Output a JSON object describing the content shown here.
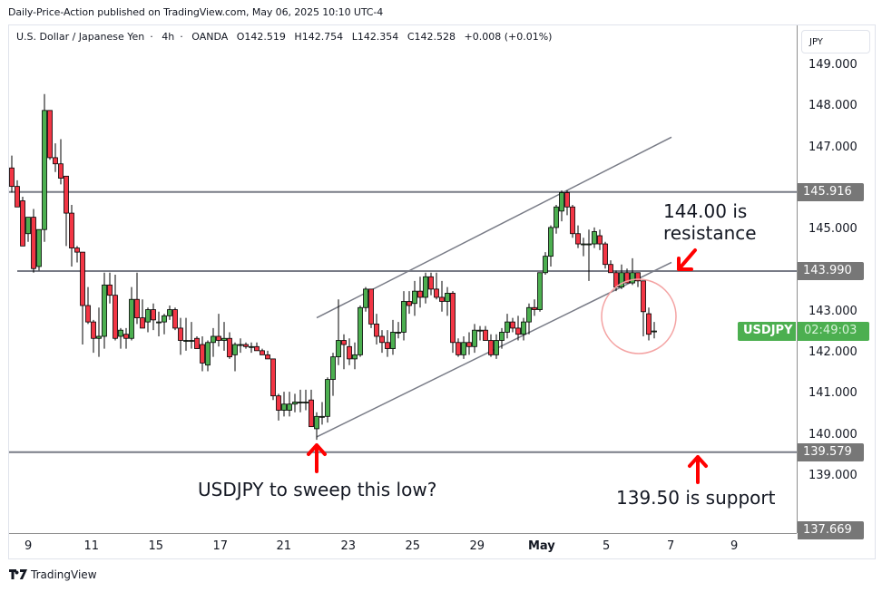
{
  "header": {
    "publisher_line": "Daily-Price-Action published on TradingView.com, May 06, 2025 10:10 UTC-4"
  },
  "legend": {
    "symbol_name": "U.S. Dollar / Japanese Yen",
    "interval": "4h",
    "exchange": "OANDA",
    "open": "O142.519",
    "high": "H142.754",
    "low": "L142.354",
    "close": "C142.528",
    "change": "+0.008 (+0.01%)"
  },
  "price_axis": {
    "currency": "JPY",
    "ticks": [
      "149.000",
      "148.000",
      "147.000",
      "145.000",
      "143.000",
      "142.000",
      "141.000",
      "140.000",
      "139.000"
    ],
    "tags": [
      {
        "label": "145.916",
        "value": 145.916
      },
      {
        "label": "143.990",
        "value": 143.99
      },
      {
        "label": "139.579",
        "value": 139.579
      },
      {
        "label": "137.669",
        "value": 137.669
      }
    ],
    "symbol_tag": "USDJPY",
    "countdown": "02:49:03"
  },
  "time_axis": {
    "ticks": [
      {
        "label": "9",
        "x": 31,
        "bold": false
      },
      {
        "label": "11",
        "x": 101,
        "bold": false
      },
      {
        "label": "15",
        "x": 172,
        "bold": false
      },
      {
        "label": "17",
        "x": 243,
        "bold": false
      },
      {
        "label": "21",
        "x": 313,
        "bold": false
      },
      {
        "label": "23",
        "x": 384,
        "bold": false
      },
      {
        "label": "25",
        "x": 455,
        "bold": false
      },
      {
        "label": "29",
        "x": 526,
        "bold": false
      },
      {
        "label": "May",
        "x": 597,
        "bold": true
      },
      {
        "label": "5",
        "x": 668,
        "bold": false
      },
      {
        "label": "7",
        "x": 739,
        "bold": false
      },
      {
        "label": "9",
        "x": 809,
        "bold": false
      }
    ]
  },
  "annotations": {
    "resistance_note_line1": "144.00 is",
    "resistance_note_line2": "resistance",
    "sweep_note": "USDJPY to sweep this low?",
    "support_note": "139.50 is support"
  },
  "footer": {
    "brand": "TradingView"
  },
  "colors": {
    "up": "#4caf50",
    "down": "#f23645",
    "level_line": "#787b86",
    "arrow": "#ff0000",
    "circle": "#f4a3a3"
  },
  "chart_data": {
    "type": "candlestick",
    "title": "U.S. Dollar / Japanese Yen · 4h · OANDA",
    "xlabel": "",
    "ylabel": "JPY",
    "ylim": [
      137.2,
      149.7
    ],
    "x_ticks": [
      "9",
      "11",
      "15",
      "17",
      "21",
      "23",
      "25",
      "29",
      "May",
      "5",
      "7",
      "9"
    ],
    "horizontal_levels": [
      145.916,
      143.99,
      139.579
    ],
    "last_price": 142.528,
    "channel": {
      "upper": [
        {
          "x": 349,
          "p": 142.85
        },
        {
          "x": 740,
          "p": 147.25
        }
      ],
      "lower": [
        {
          "x": 349,
          "p": 139.95
        },
        {
          "x": 740,
          "p": 144.2
        }
      ]
    },
    "ohlc": [
      {
        "x": 13,
        "o": 146.5,
        "h": 146.8,
        "l": 145.9,
        "c": 146.05
      },
      {
        "x": 19,
        "o": 146.05,
        "h": 146.2,
        "l": 145.6,
        "c": 145.55
      },
      {
        "x": 25,
        "o": 145.7,
        "h": 145.8,
        "l": 144.95,
        "c": 144.6
      },
      {
        "x": 31,
        "o": 144.9,
        "h": 145.3,
        "l": 144.7,
        "c": 145.3
      },
      {
        "x": 37,
        "o": 145.3,
        "h": 145.5,
        "l": 143.95,
        "c": 144.05
      },
      {
        "x": 43,
        "o": 144.1,
        "h": 145.0,
        "l": 144.0,
        "c": 145.0
      },
      {
        "x": 49,
        "o": 145.0,
        "h": 148.3,
        "l": 144.7,
        "c": 147.9
      },
      {
        "x": 55,
        "o": 147.9,
        "h": 147.9,
        "l": 146.7,
        "c": 146.75
      },
      {
        "x": 61,
        "o": 146.75,
        "h": 147.1,
        "l": 146.4,
        "c": 146.6
      },
      {
        "x": 67,
        "o": 146.6,
        "h": 147.2,
        "l": 146.1,
        "c": 146.25
      },
      {
        "x": 73,
        "o": 146.3,
        "h": 146.3,
        "l": 144.6,
        "c": 145.4
      },
      {
        "x": 79,
        "o": 145.4,
        "h": 145.6,
        "l": 144.1,
        "c": 144.55
      },
      {
        "x": 85,
        "o": 144.55,
        "h": 144.6,
        "l": 144.2,
        "c": 144.45
      },
      {
        "x": 91,
        "o": 144.45,
        "h": 144.45,
        "l": 142.2,
        "c": 143.15
      },
      {
        "x": 97,
        "o": 143.15,
        "h": 143.6,
        "l": 142.7,
        "c": 142.75
      },
      {
        "x": 103,
        "o": 142.75,
        "h": 142.8,
        "l": 142.0,
        "c": 142.35
      },
      {
        "x": 109,
        "o": 142.35,
        "h": 143.1,
        "l": 141.9,
        "c": 142.4
      },
      {
        "x": 115,
        "o": 142.4,
        "h": 143.95,
        "l": 142.1,
        "c": 143.65
      },
      {
        "x": 121,
        "o": 143.65,
        "h": 143.95,
        "l": 143.2,
        "c": 143.4
      },
      {
        "x": 127,
        "o": 143.4,
        "h": 143.9,
        "l": 142.3,
        "c": 142.35
      },
      {
        "x": 133,
        "o": 142.4,
        "h": 142.6,
        "l": 142.1,
        "c": 142.55
      },
      {
        "x": 139,
        "o": 142.45,
        "h": 142.6,
        "l": 142.1,
        "c": 142.35
      },
      {
        "x": 145,
        "o": 142.35,
        "h": 143.6,
        "l": 142.3,
        "c": 143.3
      },
      {
        "x": 151,
        "o": 143.3,
        "h": 143.95,
        "l": 142.7,
        "c": 142.85
      },
      {
        "x": 157,
        "o": 142.85,
        "h": 143.3,
        "l": 142.7,
        "c": 142.6
      },
      {
        "x": 163,
        "o": 142.75,
        "h": 143.1,
        "l": 142.5,
        "c": 143.05
      },
      {
        "x": 169,
        "o": 143.05,
        "h": 143.2,
        "l": 142.55,
        "c": 142.8
      },
      {
        "x": 175,
        "o": 142.75,
        "h": 143.0,
        "l": 142.4,
        "c": 142.75
      },
      {
        "x": 181,
        "o": 142.75,
        "h": 142.95,
        "l": 142.45,
        "c": 142.9
      },
      {
        "x": 187,
        "o": 142.9,
        "h": 143.15,
        "l": 142.8,
        "c": 143.05
      },
      {
        "x": 193,
        "o": 143.05,
        "h": 143.1,
        "l": 142.55,
        "c": 142.6
      },
      {
        "x": 199,
        "o": 142.6,
        "h": 142.85,
        "l": 141.95,
        "c": 142.3
      },
      {
        "x": 205,
        "o": 142.3,
        "h": 142.85,
        "l": 142.05,
        "c": 142.3
      },
      {
        "x": 211,
        "o": 142.3,
        "h": 142.75,
        "l": 142.1,
        "c": 142.3
      },
      {
        "x": 217,
        "o": 142.35,
        "h": 142.4,
        "l": 142.1,
        "c": 142.1
      },
      {
        "x": 223,
        "o": 142.2,
        "h": 142.4,
        "l": 141.55,
        "c": 141.75
      },
      {
        "x": 229,
        "o": 141.7,
        "h": 142.3,
        "l": 141.55,
        "c": 142.25
      },
      {
        "x": 235,
        "o": 142.25,
        "h": 142.6,
        "l": 141.9,
        "c": 142.4
      },
      {
        "x": 241,
        "o": 142.4,
        "h": 142.95,
        "l": 142.15,
        "c": 142.3
      },
      {
        "x": 247,
        "o": 142.3,
        "h": 142.75,
        "l": 142.05,
        "c": 142.35
      },
      {
        "x": 253,
        "o": 142.35,
        "h": 142.5,
        "l": 141.85,
        "c": 141.9
      },
      {
        "x": 259,
        "o": 141.95,
        "h": 142.25,
        "l": 141.55,
        "c": 142.2
      },
      {
        "x": 265,
        "o": 142.2,
        "h": 142.35,
        "l": 142.0,
        "c": 142.2
      },
      {
        "x": 271,
        "o": 142.2,
        "h": 142.25,
        "l": 142.1,
        "c": 142.15
      },
      {
        "x": 277,
        "o": 142.15,
        "h": 142.25,
        "l": 142.0,
        "c": 142.15
      },
      {
        "x": 283,
        "o": 142.15,
        "h": 142.25,
        "l": 142.05,
        "c": 142.05
      },
      {
        "x": 289,
        "o": 142.05,
        "h": 142.1,
        "l": 141.95,
        "c": 141.95
      },
      {
        "x": 295,
        "o": 141.95,
        "h": 142.05,
        "l": 141.85,
        "c": 141.85
      },
      {
        "x": 301,
        "o": 141.85,
        "h": 141.85,
        "l": 140.85,
        "c": 140.95
      },
      {
        "x": 307,
        "o": 140.95,
        "h": 141.0,
        "l": 140.35,
        "c": 140.6
      },
      {
        "x": 313,
        "o": 140.6,
        "h": 141.05,
        "l": 140.45,
        "c": 140.75
      },
      {
        "x": 319,
        "o": 140.6,
        "h": 141.05,
        "l": 140.45,
        "c": 140.75
      },
      {
        "x": 325,
        "o": 140.75,
        "h": 141.0,
        "l": 140.55,
        "c": 140.8
      },
      {
        "x": 331,
        "o": 140.8,
        "h": 141.1,
        "l": 140.55,
        "c": 140.8
      },
      {
        "x": 337,
        "o": 140.8,
        "h": 141.1,
        "l": 140.6,
        "c": 140.8
      },
      {
        "x": 343,
        "o": 140.85,
        "h": 141.1,
        "l": 140.2,
        "c": 140.2
      },
      {
        "x": 349,
        "o": 140.15,
        "h": 140.55,
        "l": 139.88,
        "c": 140.45
      },
      {
        "x": 355,
        "o": 140.45,
        "h": 140.8,
        "l": 140.25,
        "c": 140.45
      },
      {
        "x": 361,
        "o": 140.45,
        "h": 141.4,
        "l": 140.3,
        "c": 141.35
      },
      {
        "x": 367,
        "o": 141.35,
        "h": 142.0,
        "l": 140.95,
        "c": 141.9
      },
      {
        "x": 373,
        "o": 141.9,
        "h": 143.3,
        "l": 141.7,
        "c": 142.3
      },
      {
        "x": 379,
        "o": 142.3,
        "h": 142.45,
        "l": 141.6,
        "c": 142.2
      },
      {
        "x": 385,
        "o": 142.15,
        "h": 142.35,
        "l": 141.7,
        "c": 141.85
      },
      {
        "x": 391,
        "o": 141.85,
        "h": 142.25,
        "l": 141.6,
        "c": 141.95
      },
      {
        "x": 397,
        "o": 141.95,
        "h": 143.15,
        "l": 141.9,
        "c": 143.1
      },
      {
        "x": 403,
        "o": 143.1,
        "h": 143.6,
        "l": 143.0,
        "c": 143.55
      },
      {
        "x": 409,
        "o": 143.55,
        "h": 143.55,
        "l": 142.6,
        "c": 142.7
      },
      {
        "x": 415,
        "o": 142.7,
        "h": 142.95,
        "l": 142.2,
        "c": 142.4
      },
      {
        "x": 421,
        "o": 142.4,
        "h": 142.55,
        "l": 142.0,
        "c": 142.25
      },
      {
        "x": 427,
        "o": 142.25,
        "h": 142.55,
        "l": 141.9,
        "c": 142.1
      },
      {
        "x": 433,
        "o": 142.1,
        "h": 142.8,
        "l": 141.95,
        "c": 142.5
      },
      {
        "x": 439,
        "o": 142.5,
        "h": 142.75,
        "l": 142.35,
        "c": 142.5
      },
      {
        "x": 445,
        "o": 142.5,
        "h": 143.5,
        "l": 142.3,
        "c": 143.25
      },
      {
        "x": 451,
        "o": 143.25,
        "h": 143.5,
        "l": 142.95,
        "c": 143.15
      },
      {
        "x": 457,
        "o": 143.2,
        "h": 143.75,
        "l": 142.9,
        "c": 143.5
      },
      {
        "x": 463,
        "o": 143.5,
        "h": 143.85,
        "l": 143.1,
        "c": 143.35
      },
      {
        "x": 469,
        "o": 143.35,
        "h": 143.95,
        "l": 143.2,
        "c": 143.85
      },
      {
        "x": 475,
        "o": 143.85,
        "h": 143.95,
        "l": 143.4,
        "c": 143.55
      },
      {
        "x": 481,
        "o": 143.55,
        "h": 143.95,
        "l": 143.3,
        "c": 143.35
      },
      {
        "x": 487,
        "o": 143.35,
        "h": 143.75,
        "l": 143.0,
        "c": 143.25
      },
      {
        "x": 493,
        "o": 143.25,
        "h": 143.6,
        "l": 142.9,
        "c": 143.45
      },
      {
        "x": 499,
        "o": 143.45,
        "h": 143.5,
        "l": 142.0,
        "c": 142.25
      },
      {
        "x": 505,
        "o": 142.25,
        "h": 142.35,
        "l": 141.9,
        "c": 141.95
      },
      {
        "x": 511,
        "o": 141.95,
        "h": 142.4,
        "l": 141.85,
        "c": 142.25
      },
      {
        "x": 517,
        "o": 142.25,
        "h": 142.5,
        "l": 141.95,
        "c": 142.15
      },
      {
        "x": 523,
        "o": 142.15,
        "h": 142.7,
        "l": 142.0,
        "c": 142.55
      },
      {
        "x": 529,
        "o": 142.55,
        "h": 142.65,
        "l": 142.3,
        "c": 142.55
      },
      {
        "x": 535,
        "o": 142.55,
        "h": 142.65,
        "l": 142.3,
        "c": 142.3
      },
      {
        "x": 541,
        "o": 142.3,
        "h": 142.45,
        "l": 141.9,
        "c": 141.95
      },
      {
        "x": 547,
        "o": 141.95,
        "h": 142.45,
        "l": 141.85,
        "c": 142.3
      },
      {
        "x": 553,
        "o": 142.3,
        "h": 142.6,
        "l": 142.1,
        "c": 142.5
      },
      {
        "x": 559,
        "o": 142.5,
        "h": 142.95,
        "l": 142.35,
        "c": 142.75
      },
      {
        "x": 565,
        "o": 142.75,
        "h": 142.85,
        "l": 142.5,
        "c": 142.6
      },
      {
        "x": 571,
        "o": 142.6,
        "h": 142.9,
        "l": 142.3,
        "c": 142.45
      },
      {
        "x": 577,
        "o": 142.45,
        "h": 142.85,
        "l": 142.3,
        "c": 142.75
      },
      {
        "x": 583,
        "o": 142.75,
        "h": 143.2,
        "l": 142.45,
        "c": 143.1
      },
      {
        "x": 589,
        "o": 143.1,
        "h": 143.3,
        "l": 142.9,
        "c": 143.05
      },
      {
        "x": 595,
        "o": 143.05,
        "h": 143.95,
        "l": 143.0,
        "c": 143.95
      },
      {
        "x": 601,
        "o": 143.95,
        "h": 144.45,
        "l": 143.9,
        "c": 144.35
      },
      {
        "x": 607,
        "o": 144.35,
        "h": 145.1,
        "l": 144.1,
        "c": 145.05
      },
      {
        "x": 613,
        "o": 145.05,
        "h": 145.6,
        "l": 144.9,
        "c": 145.55
      },
      {
        "x": 619,
        "o": 145.45,
        "h": 145.95,
        "l": 145.2,
        "c": 145.9
      },
      {
        "x": 625,
        "o": 145.9,
        "h": 145.95,
        "l": 145.35,
        "c": 145.55
      },
      {
        "x": 631,
        "o": 145.55,
        "h": 145.6,
        "l": 144.8,
        "c": 144.9
      },
      {
        "x": 637,
        "o": 144.9,
        "h": 145.1,
        "l": 144.55,
        "c": 144.65
      },
      {
        "x": 643,
        "o": 144.65,
        "h": 144.8,
        "l": 144.35,
        "c": 144.65
      },
      {
        "x": 649,
        "o": 144.65,
        "h": 145.0,
        "l": 143.75,
        "c": 144.65
      },
      {
        "x": 655,
        "o": 144.65,
        "h": 145.05,
        "l": 144.55,
        "c": 144.95
      },
      {
        "x": 661,
        "o": 144.85,
        "h": 145.0,
        "l": 144.5,
        "c": 144.65
      },
      {
        "x": 667,
        "o": 144.65,
        "h": 144.7,
        "l": 144.05,
        "c": 144.15
      },
      {
        "x": 673,
        "o": 144.15,
        "h": 144.25,
        "l": 143.95,
        "c": 143.95
      },
      {
        "x": 679,
        "o": 143.95,
        "h": 144.0,
        "l": 143.5,
        "c": 143.6
      },
      {
        "x": 685,
        "o": 143.6,
        "h": 144.15,
        "l": 143.55,
        "c": 143.95
      },
      {
        "x": 691,
        "o": 143.95,
        "h": 144.05,
        "l": 143.7,
        "c": 143.7
      },
      {
        "x": 697,
        "o": 143.7,
        "h": 144.3,
        "l": 143.65,
        "c": 143.95
      },
      {
        "x": 703,
        "o": 143.95,
        "h": 143.95,
        "l": 143.6,
        "c": 143.75
      },
      {
        "x": 709,
        "o": 143.75,
        "h": 143.75,
        "l": 142.4,
        "c": 143.0
      },
      {
        "x": 715,
        "o": 142.95,
        "h": 143.1,
        "l": 142.3,
        "c": 142.45
      },
      {
        "x": 721,
        "o": 142.52,
        "h": 142.75,
        "l": 142.35,
        "c": 142.53
      }
    ]
  }
}
